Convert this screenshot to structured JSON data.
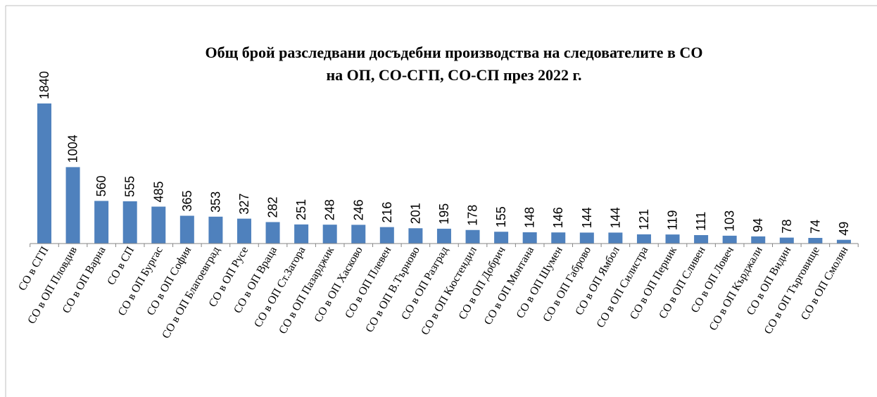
{
  "chart_data": {
    "type": "bar",
    "title_lines": [
      "Общ брой разследвани досъдебни производства на следователите в СО",
      "на ОП, СО-СГП, СО-СП през 2022 г."
    ],
    "categories": [
      "СО в СГП",
      "СО в ОП Пловдив",
      "СО в ОП Варна",
      "СО в СП",
      "СО в ОП Бургас",
      "СО в ОП София",
      "СО в ОП Благоевград",
      "СО в ОП Русе",
      "СО в ОП Враца",
      "СО в ОП Ст.Загора",
      "СО в ОП Пазарджик",
      "СО в ОП Хасково",
      "СО в ОП Плевен",
      "СО в ОП В.Търново",
      "СО в ОП Разград",
      "СО в ОП Кюстендил",
      "СО в ОП Добрич",
      "СО в ОП Монтана",
      "СО в ОП Шумен",
      "СО в ОП Габрово",
      "СО в ОП Ямбол",
      "СО в ОП Силистра",
      "СО в ОП Перник",
      "СО в ОП Сливен",
      "СО в ОП Ловеч",
      "СО в ОП Кърджали",
      "СО в ОП Видин",
      "СО в ОП Търговище",
      "СО в ОП Смолян"
    ],
    "values": [
      1840,
      1004,
      560,
      555,
      485,
      365,
      353,
      327,
      282,
      251,
      248,
      246,
      216,
      201,
      195,
      178,
      155,
      148,
      146,
      144,
      144,
      121,
      119,
      111,
      103,
      94,
      78,
      74,
      49
    ],
    "color": "#4f81bd"
  }
}
